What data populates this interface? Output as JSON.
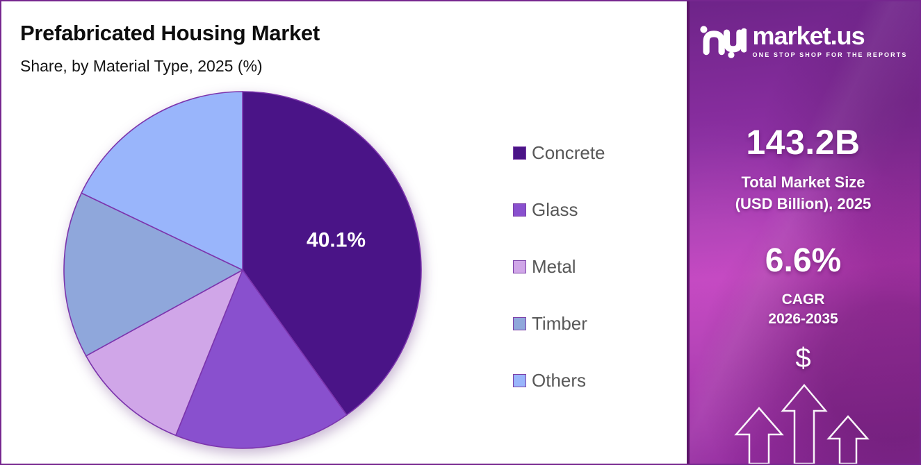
{
  "frame": {
    "border_color": "#76278F",
    "background": "#FFFFFF"
  },
  "header": {
    "title": "Prefabricated Housing Market",
    "subtitle": "Share, by Material Type, 2025 (%)"
  },
  "chart_data": {
    "type": "pie",
    "title": "Prefabricated Housing Market",
    "subtitle": "Share, by Material Type, 2025 (%)",
    "unit": "% share",
    "categories": [
      "Concrete",
      "Glass",
      "Metal",
      "Timber",
      "Others"
    ],
    "values": [
      40.1,
      16.0,
      10.9,
      15.1,
      17.9
    ],
    "colors": [
      "#4A1487",
      "#8950CE",
      "#D0A6E8",
      "#8FA7DB",
      "#99B5FB"
    ],
    "slice_stroke": "#7C35AD",
    "start_angle_deg": 0,
    "direction": "clockwise",
    "legend_position": "right",
    "data_label": {
      "slice_index": 0,
      "text": "40.1%",
      "color": "#FFFFFF",
      "radius_frac": 0.55
    }
  },
  "sidebar": {
    "brand": "market.us",
    "tagline": "ONE STOP SHOP FOR THE REPORTS",
    "stat_primary": {
      "value": "143.2B",
      "label_line1": "Total Market Size",
      "label_line2": "(USD Billion), 2025"
    },
    "stat_secondary": {
      "value": "6.6%",
      "label_line1": "CAGR",
      "label_line2": "2026-2035"
    },
    "dollar_symbol": "$",
    "colors": {
      "gradient": [
        "#6E2489",
        "#8C2FA2",
        "#C13CBE",
        "#922B9E"
      ],
      "edge_strip": "#5C1669"
    }
  }
}
